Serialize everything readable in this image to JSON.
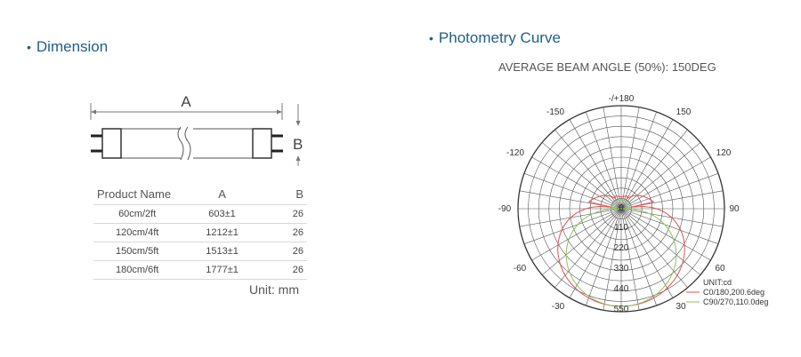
{
  "dimension": {
    "title": "Dimension",
    "label_a": "A",
    "label_b": "B",
    "table": {
      "headers": [
        "Product Name",
        "A",
        "B"
      ],
      "rows": [
        [
          "60cm/2ft",
          "603±1",
          "26"
        ],
        [
          "120cm/4ft",
          "1212±1",
          "26"
        ],
        [
          "150cm/5ft",
          "1513±1",
          "26"
        ],
        [
          "180cm/6ft",
          "1777±1",
          "26"
        ]
      ]
    },
    "unit": "Unit: mm"
  },
  "photometry": {
    "title": "Photometry Curve",
    "beam_title": "AVERAGE BEAM ANGLE (50%): 150DEG",
    "angle_labels": {
      "top": "-/+180",
      "neg150": "-150",
      "pos150": "150",
      "neg120": "-120",
      "pos120": "120",
      "neg90": "-90",
      "pos90": "90",
      "neg60": "-60",
      "pos60": "60",
      "neg30": "-30",
      "pos30": "30"
    },
    "radial_labels": [
      "0",
      "110",
      "220",
      "330",
      "440",
      "550"
    ],
    "unit": "UNIT:cd",
    "legend": [
      {
        "label": "C0/180,200.6deg",
        "color": "#e05050"
      },
      {
        "label": "C90/270,110.0deg",
        "color": "#8cc060"
      }
    ]
  },
  "colors": {
    "heading": "#1f5f8b",
    "curve_c0": "#e05050",
    "curve_c90": "#8cc060"
  }
}
